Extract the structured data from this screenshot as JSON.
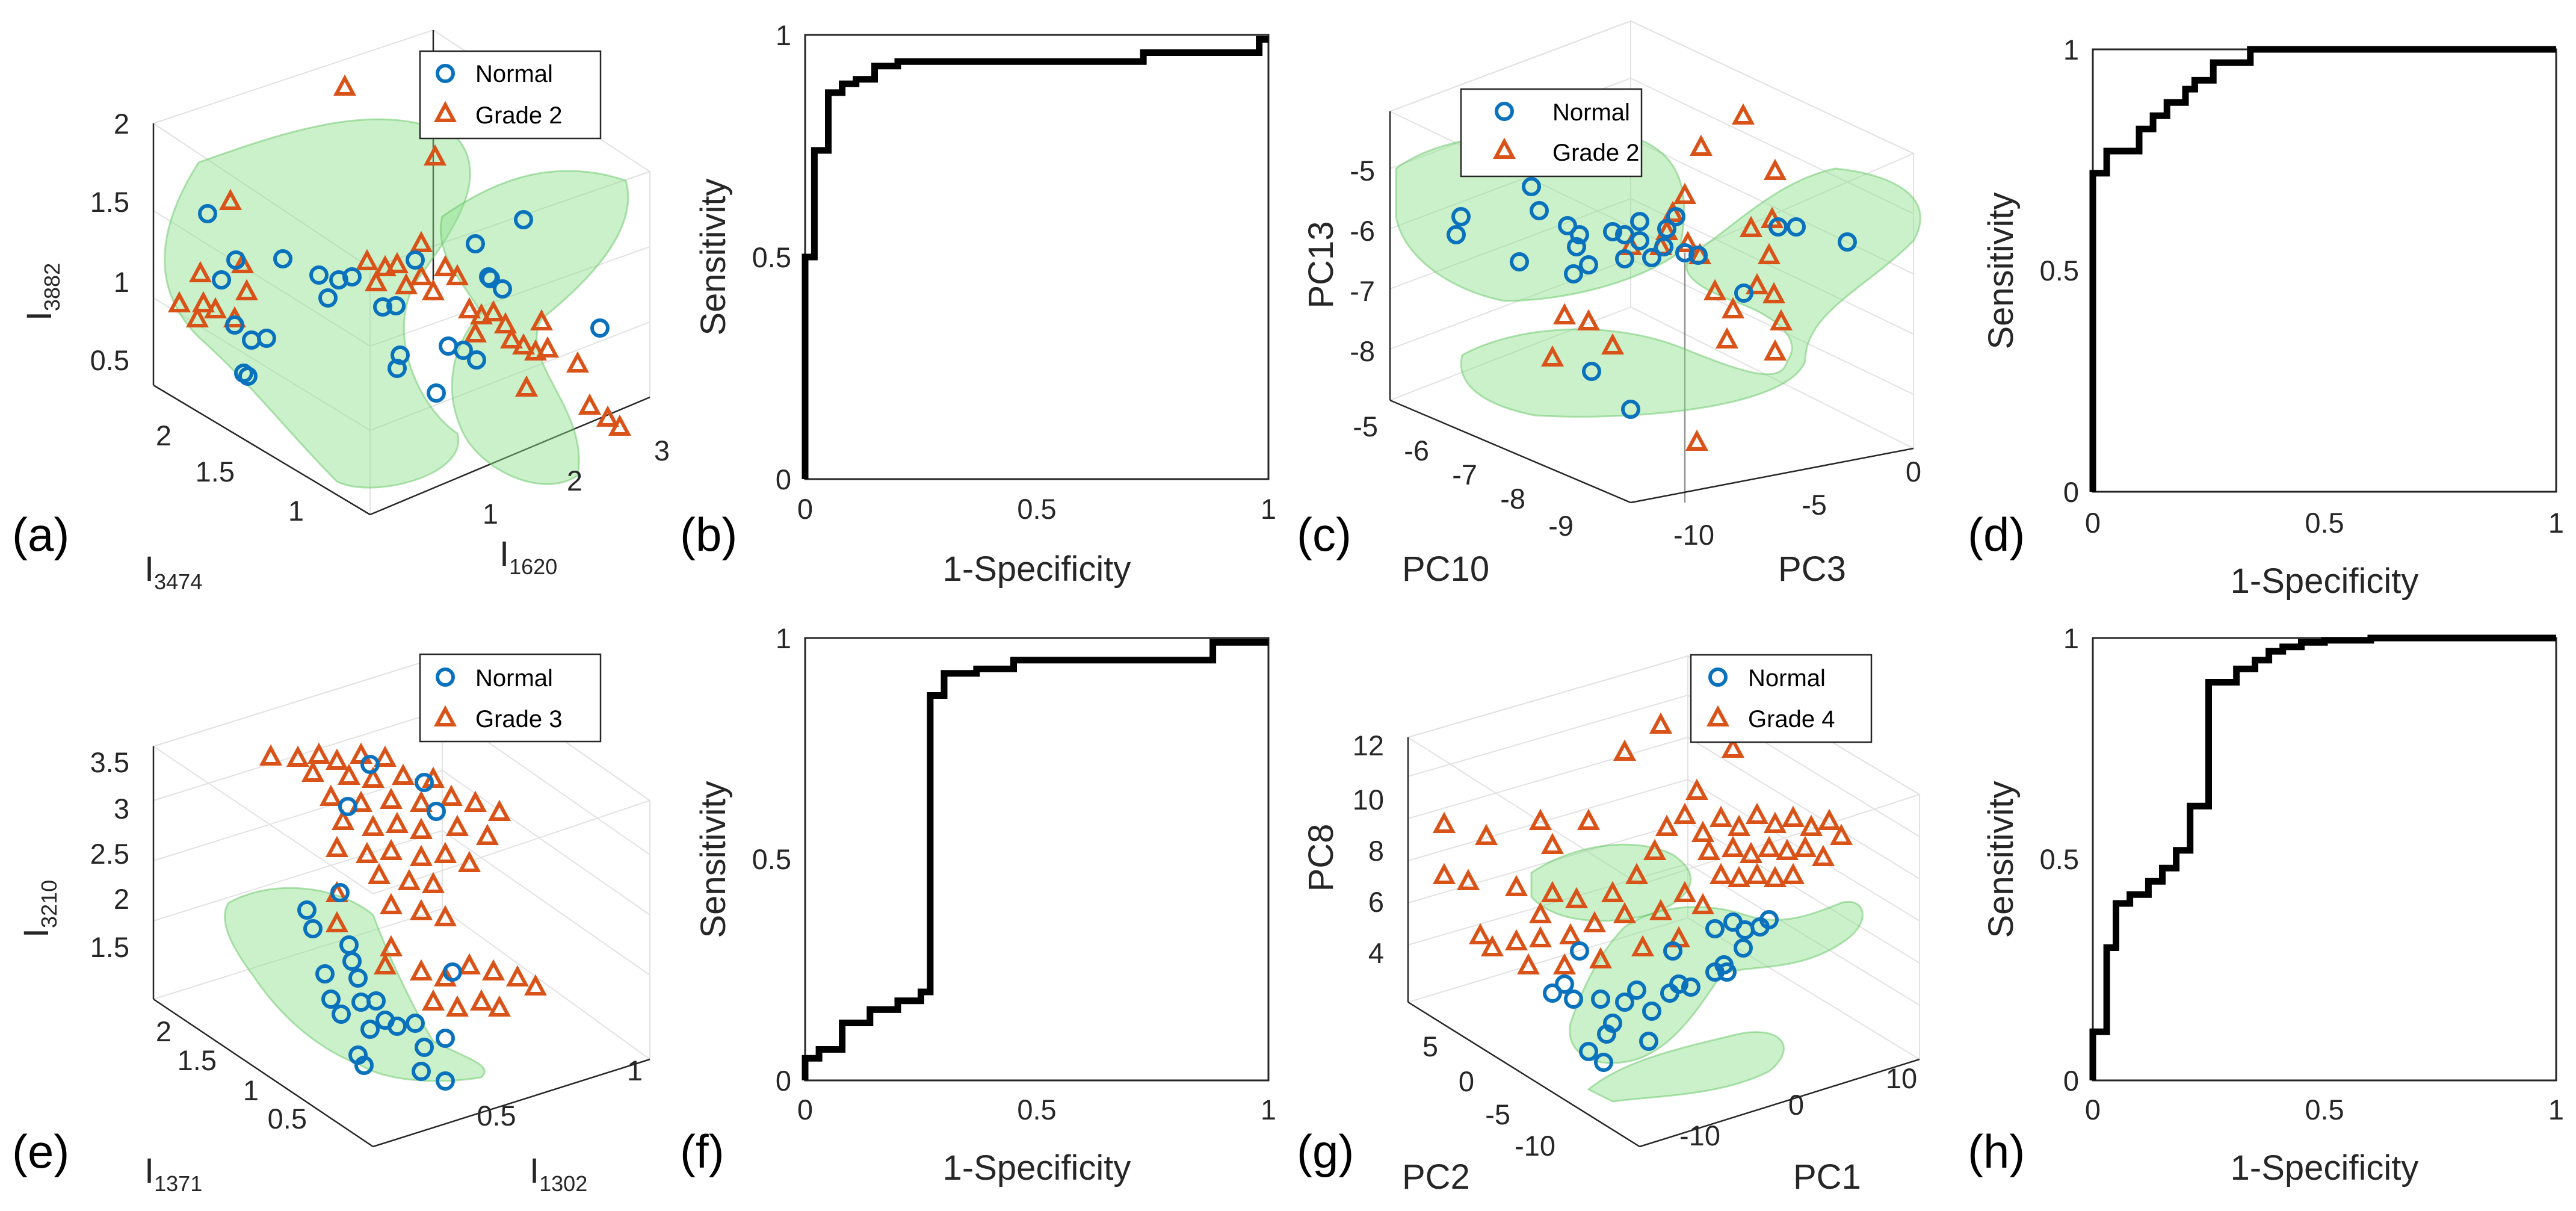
{
  "colors": {
    "normal": "#0a72bd",
    "grade": "#d95319",
    "surface": "#8ce08c",
    "roc": "#000000"
  },
  "panels": {
    "a": {
      "letter": "(a)",
      "legend": [
        "Normal",
        "Grade 2"
      ],
      "zlabel": {
        "base": "I",
        "sub": "3882"
      },
      "ylabel": {
        "base": "I",
        "sub": "3474"
      },
      "xlabel": {
        "base": "I",
        "sub": "1620"
      },
      "zticks": [
        "2",
        "1.5",
        "1",
        "0.5"
      ],
      "yticks": [
        "2",
        "1.5",
        "1"
      ],
      "xticks": [
        "1",
        "2",
        "3"
      ]
    },
    "c": {
      "letter": "(c)",
      "legend": [
        "Normal",
        "Grade 2"
      ],
      "zlabel": {
        "base": "PC13",
        "sub": ""
      },
      "ylabel": {
        "base": "PC10",
        "sub": ""
      },
      "xlabel": {
        "base": "PC3",
        "sub": ""
      },
      "zticks": [
        "-5",
        "-6",
        "-7",
        "-8"
      ],
      "yticks": [
        "-5",
        "-6",
        "-7",
        "-8",
        "-9"
      ],
      "xticks": [
        "-10",
        "-5",
        "0"
      ]
    },
    "e": {
      "letter": "(e)",
      "legend": [
        "Normal",
        "Grade 3"
      ],
      "zlabel": {
        "base": "I",
        "sub": "3210"
      },
      "ylabel": {
        "base": "I",
        "sub": "1371"
      },
      "xlabel": {
        "base": "I",
        "sub": "1302"
      },
      "zticks": [
        "3.5",
        "3",
        "2.5",
        "2",
        "1.5"
      ],
      "yticks": [
        "2",
        "1.5",
        "1",
        "0.5"
      ],
      "xticks": [
        "0.5",
        "1"
      ]
    },
    "g": {
      "letter": "(g)",
      "legend": [
        "Normal",
        "Grade 4"
      ],
      "zlabel": {
        "base": "PC8",
        "sub": ""
      },
      "ylabel": {
        "base": "PC2",
        "sub": ""
      },
      "xlabel": {
        "base": "PC1",
        "sub": ""
      },
      "zticks": [
        "12",
        "10",
        "8",
        "6",
        "4"
      ],
      "yticks": [
        "5",
        "0",
        "-5",
        "-10"
      ],
      "xticks": [
        "-10",
        "0",
        "10"
      ]
    }
  },
  "chart_data": [
    {
      "id": "b",
      "letter": "(b)",
      "type": "line",
      "xlabel": "1-Specificity",
      "ylabel": "Sensitivity",
      "xlim": [
        0,
        1
      ],
      "ylim": [
        0,
        1
      ],
      "xticks": [
        "0",
        "0.5",
        "1"
      ],
      "yticks": [
        "0",
        "0.5",
        "1"
      ],
      "x": [
        0,
        0,
        0.02,
        0.02,
        0.05,
        0.05,
        0.08,
        0.08,
        0.11,
        0.11,
        0.15,
        0.15,
        0.2,
        0.2,
        0.73,
        0.73,
        0.98,
        0.98,
        1
      ],
      "y": [
        0,
        0.5,
        0.5,
        0.74,
        0.74,
        0.87,
        0.87,
        0.89,
        0.89,
        0.9,
        0.9,
        0.93,
        0.93,
        0.94,
        0.94,
        0.96,
        0.96,
        0.99,
        0.99
      ]
    },
    {
      "id": "d",
      "letter": "(d)",
      "type": "line",
      "xlabel": "1-Specificity",
      "ylabel": "Sensitivity",
      "xlim": [
        0,
        1
      ],
      "ylim": [
        0,
        1
      ],
      "xticks": [
        "0",
        "0.5",
        "1"
      ],
      "yticks": [
        "0",
        "0.5",
        "1"
      ],
      "x": [
        0,
        0,
        0.03,
        0.03,
        0.1,
        0.1,
        0.13,
        0.13,
        0.16,
        0.16,
        0.2,
        0.2,
        0.22,
        0.22,
        0.26,
        0.26,
        0.34,
        0.34,
        1
      ],
      "y": [
        0,
        0.72,
        0.72,
        0.77,
        0.77,
        0.82,
        0.82,
        0.85,
        0.85,
        0.88,
        0.88,
        0.91,
        0.91,
        0.93,
        0.93,
        0.97,
        0.97,
        1.0,
        1.0
      ]
    },
    {
      "id": "f",
      "letter": "(f)",
      "type": "line",
      "xlabel": "1-Specificity",
      "ylabel": "Sensitivity",
      "xlim": [
        0,
        1
      ],
      "ylim": [
        0,
        1
      ],
      "xticks": [
        "0",
        "0.5",
        "1"
      ],
      "yticks": [
        "0",
        "0.5",
        "1"
      ],
      "x": [
        0,
        0,
        0.03,
        0.03,
        0.08,
        0.08,
        0.14,
        0.14,
        0.2,
        0.2,
        0.25,
        0.25,
        0.27,
        0.27,
        0.3,
        0.3,
        0.37,
        0.37,
        0.45,
        0.45,
        0.88,
        0.88,
        1
      ],
      "y": [
        0,
        0.05,
        0.05,
        0.07,
        0.07,
        0.13,
        0.13,
        0.16,
        0.16,
        0.18,
        0.18,
        0.2,
        0.2,
        0.87,
        0.87,
        0.92,
        0.92,
        0.93,
        0.93,
        0.95,
        0.95,
        0.99,
        0.99
      ]
    },
    {
      "id": "h",
      "letter": "(h)",
      "type": "line",
      "xlabel": "1-Specificity",
      "ylabel": "Sensitivity",
      "xlim": [
        0,
        1
      ],
      "ylim": [
        0,
        1
      ],
      "xticks": [
        "0",
        "0.5",
        "1"
      ],
      "yticks": [
        "0",
        "0.5",
        "1"
      ],
      "x": [
        0,
        0,
        0.03,
        0.03,
        0.05,
        0.05,
        0.08,
        0.08,
        0.12,
        0.12,
        0.15,
        0.15,
        0.18,
        0.18,
        0.21,
        0.21,
        0.25,
        0.25,
        0.31,
        0.31,
        0.35,
        0.35,
        0.38,
        0.38,
        0.41,
        0.41,
        0.45,
        0.45,
        0.5,
        0.5,
        0.6,
        0.6,
        0.75,
        0.75,
        1
      ],
      "y": [
        0,
        0.11,
        0.11,
        0.3,
        0.3,
        0.4,
        0.4,
        0.42,
        0.42,
        0.45,
        0.45,
        0.48,
        0.48,
        0.52,
        0.52,
        0.62,
        0.62,
        0.9,
        0.9,
        0.93,
        0.93,
        0.95,
        0.95,
        0.97,
        0.97,
        0.98,
        0.98,
        0.99,
        0.99,
        0.995,
        0.995,
        1.0,
        1.0,
        1.0,
        1.0
      ]
    }
  ]
}
